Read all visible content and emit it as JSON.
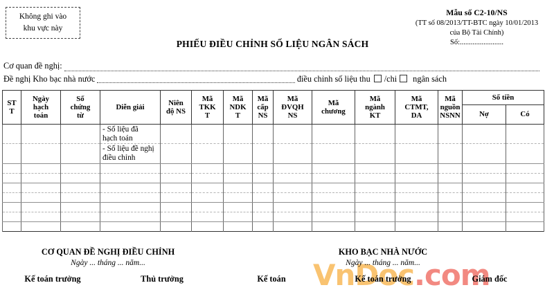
{
  "note_box": {
    "text": "Không ghi vào\nkhu vực này"
  },
  "form_meta": {
    "form_number": "Mẫu số C2-10/NS",
    "circular_line1": "(TT số 08/2013/TT-BTC ngày 10/01/2013",
    "circular_line2": "của Bộ Tài Chính)",
    "number_label": "Số:........................"
  },
  "title": "PHIẾU ĐIỀU CHỈNH SỐ LIỆU NGÂN SÁCH",
  "request_lines": {
    "agency_label": "Cơ quan đề nghị:",
    "treasury_label": "Đề nghị Kho bạc nhà nước",
    "adjust_label": "điều chỉnh số liệu thu",
    "chi_label": "/chi",
    "budget_label": "ngân sách"
  },
  "table": {
    "headers": [
      "ST\nT",
      "Ngày\nhạch\ntoán",
      "Số\nchứng\ntừ",
      "Diễn giải",
      "Niên\nđộ NS",
      "Mã\nTKK\nT",
      "Mã\nNDK\nT",
      "Mã\ncấp\nNS",
      "Mã\nĐVQH\nNS",
      "Mã\nchương",
      "Mã\nngành\nKT",
      "Mã\nCTMT,\nDA",
      "Mã\nnguồn\nNSNN"
    ],
    "amount_header": {
      "label": "Số tiền",
      "debit": "Nợ",
      "credit": "Có"
    },
    "rows": [
      {
        "description": "- Số liệu đã\nhạch toán",
        "type": "text1"
      },
      {
        "description": "- Số liệu đề nghị\nđiều chỉnh",
        "type": "text2"
      },
      {
        "description": "",
        "type": "empty"
      },
      {
        "description": "",
        "type": "empty"
      },
      {
        "description": "",
        "type": "empty"
      },
      {
        "description": "",
        "type": "empty"
      },
      {
        "description": "",
        "type": "empty"
      },
      {
        "description": "",
        "type": "empty"
      },
      {
        "description": "",
        "type": "empty"
      }
    ]
  },
  "footer": {
    "left": {
      "title": "CƠ QUAN ĐỀ NGHỊ ĐIỀU CHỈNH",
      "date_line": "Ngày ... tháng ... năm..."
    },
    "right": {
      "title": "KHO BẠC NHÀ NƯỚC",
      "date_line": "Ngày ... tháng ... năm..."
    },
    "signatures": [
      {
        "label": "Kế toán trưởng"
      },
      {
        "label": "Thủ trưởng"
      },
      {
        "label": "Kế toán"
      },
      {
        "label": "Kế toán trưởng"
      },
      {
        "label": "Giám đốc"
      }
    ]
  },
  "watermark": {
    "part1": "VnDoc",
    "part2": ".com",
    "color1": "#f9c06a",
    "color2": "#f2837b"
  }
}
